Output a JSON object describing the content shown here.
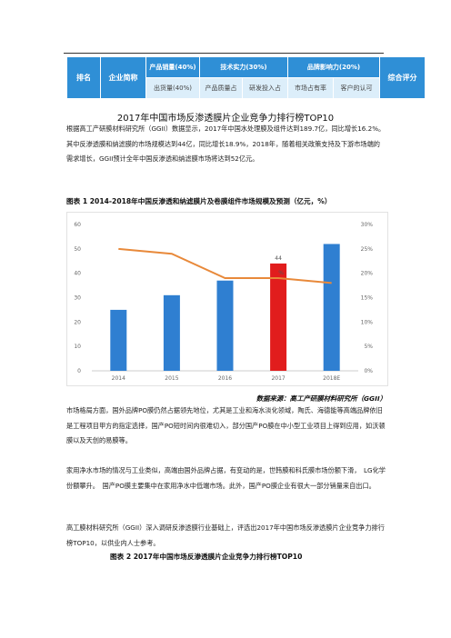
{
  "table_header": {
    "rank": "排名",
    "company": "企业简称",
    "group_sales": "产品销量(40%)",
    "group_tech": "技术实力(30%)",
    "group_brand": "品牌影响力(20%)",
    "overall": "综合评分",
    "sub_shipments": "出货量(40%)",
    "sub_quality": "产品质量占",
    "sub_rd": "研发投入占",
    "sub_share": "市场占有率",
    "sub_recognition": "客户的认可"
  },
  "doc_title": "2017年中国市场反渗透膜片企业竞争力排行榜TOP10",
  "para1": "根据高工产研膜材料研究所（GGII）数据显示，2017年中国水处理膜及组件达到189.7亿，同比增长16.2%。其中反渗透膜和纳滤膜的市场规模达到44亿，同比增长18.9%，2018年，随着相关政策支持及下游市场端的需求增长，GGII预计全年中国反渗透和纳滤膜市场将达到52亿元。",
  "figure1_caption": "图表 1    2014-2018年中国反渗透和纳滤膜片及卷膜组件市场规模及预测（亿元，%）",
  "chart_data": {
    "type": "bar",
    "categories": [
      "2014",
      "2015",
      "2016",
      "2017",
      "2018E"
    ],
    "series": [
      {
        "kind": "bar",
        "values": [
          25,
          31,
          37,
          44,
          52
        ],
        "colors": [
          "#2f7fd1",
          "#2f7fd1",
          "#2f7fd1",
          "#e11d1d",
          "#2f7fd1"
        ]
      },
      {
        "kind": "line",
        "axis": "right",
        "values": [
          25,
          24,
          19,
          19,
          18
        ],
        "color": "#e8893a"
      }
    ],
    "data_labels": [
      {
        "index": 3,
        "series": 0,
        "text": "44"
      },
      {
        "index": 3,
        "series": 1,
        "text": "%"
      }
    ],
    "ylim_left": [
      0,
      60
    ],
    "left_ticks": [
      "0",
      "10",
      "20",
      "30",
      "40",
      "50",
      "60"
    ],
    "ylim_right": [
      0,
      30
    ],
    "right_ticks": [
      "0%",
      "5%",
      "10%",
      "15%",
      "20%",
      "25%",
      "30%"
    ],
    "grid": false
  },
  "source": "数据来源：高工产研膜材料研究所（GGII）",
  "para2": "市场格局方面，国外品牌PO膜仍然占据领先地位，尤其是工业和海水淡化领域，陶氏、海德能等高端品牌依旧是工程项目甲方的指定选择，国产PO短时间内很难切入，部分国产PO膜在中小型工业项目上得到应用，如沃顿膜以及天创的易膜等。",
  "para3": "家用净水市场的情况与工业类似，高端由国外品牌占据，有变动的是，世韩膜和科氏膜市场份额下滑，　LG化学份额攀升。　国产PO膜主要集中在家用净水中低端市场。此外，国产PO膜企业有很大一部分销量来自出口。",
  "para4": "高工膜材料研究所（GGII）深入调研反渗透膜行业基础上，评选出2017年中国市场反渗透膜片企业竞争力排行榜TOP10，以供业内人士参考。",
  "figure2_caption": "图表 2    2017年中国市场反渗透膜片企业竞争力排行榜TOP10"
}
